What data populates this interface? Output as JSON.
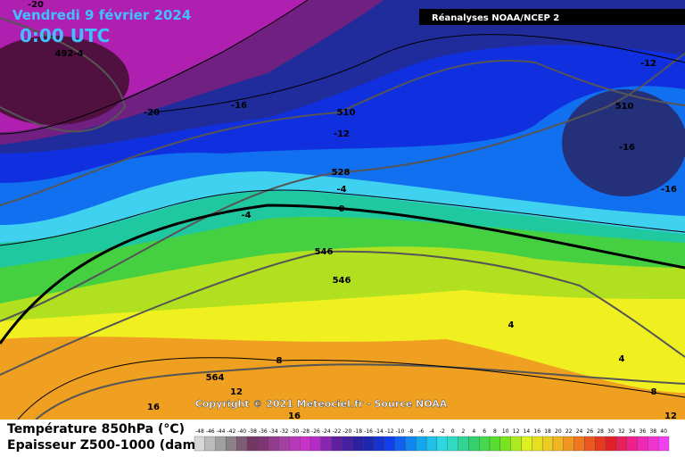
{
  "header": {
    "date": "Vendredi 9 février 2024",
    "time": "0:00 UTC",
    "source": "Réanalyses NOAA/NCEP 2"
  },
  "map": {
    "copyright": "Copyright © 2021 Meteociel.fr - Source NOAA",
    "contour_labels": [
      "-20",
      "492",
      "-4",
      "-20",
      "-16",
      "510",
      "-12",
      "528",
      "-4",
      "-4",
      "0",
      "546",
      "546",
      "-12",
      "510",
      "-16",
      "-16",
      "4",
      "4",
      "8",
      "564",
      "12",
      "16",
      "16",
      "8",
      "12"
    ]
  },
  "legend": {
    "temperature_title": "Température 850hPa (°C)",
    "thickness_title": "Epaisseur Z500-1000 (dam)",
    "scale": [
      -48,
      -46,
      -44,
      -42,
      -40,
      -38,
      -36,
      -34,
      -32,
      -30,
      -28,
      -26,
      -24,
      -22,
      -20,
      -18,
      -16,
      -14,
      -12,
      -10,
      -8,
      -6,
      -4,
      -2,
      0,
      2,
      4,
      6,
      8,
      10,
      12,
      14,
      16,
      18,
      20,
      22,
      24,
      26,
      28,
      30,
      32,
      34,
      36,
      38,
      40
    ]
  }
}
